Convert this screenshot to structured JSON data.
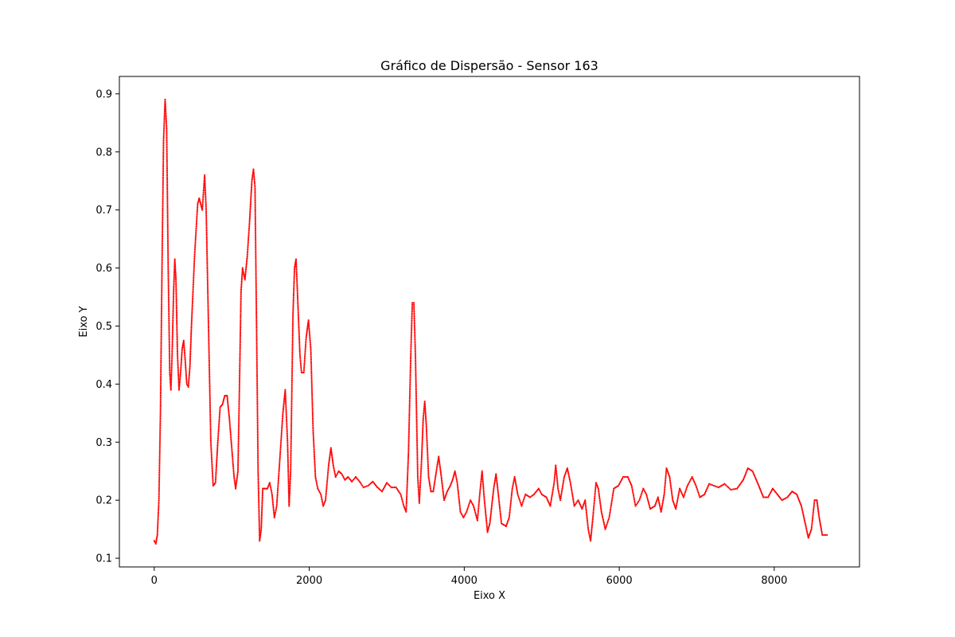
{
  "chart_data": {
    "type": "scatter",
    "title": "Gráfico de Dispersão - Sensor 163",
    "xlabel": "Eixo X",
    "ylabel": "Eixo Y",
    "xlim": [
      -450,
      9100
    ],
    "ylim": [
      0.085,
      0.93
    ],
    "x_ticks": [
      0,
      2000,
      4000,
      6000,
      8000
    ],
    "y_ticks": [
      0.1,
      0.2,
      0.3,
      0.4,
      0.5,
      0.6,
      0.7,
      0.8,
      0.9
    ],
    "marker_color": "#ff0000",
    "grid": false,
    "legend": "none",
    "series": [
      {
        "points": [
          [
            0,
            0.13
          ],
          [
            20,
            0.125
          ],
          [
            40,
            0.14
          ],
          [
            60,
            0.2
          ],
          [
            80,
            0.35
          ],
          [
            100,
            0.6
          ],
          [
            120,
            0.82
          ],
          [
            140,
            0.89
          ],
          [
            160,
            0.84
          ],
          [
            180,
            0.6
          ],
          [
            200,
            0.42
          ],
          [
            215,
            0.39
          ],
          [
            230,
            0.45
          ],
          [
            250,
            0.56
          ],
          [
            265,
            0.615
          ],
          [
            280,
            0.58
          ],
          [
            300,
            0.45
          ],
          [
            320,
            0.39
          ],
          [
            340,
            0.42
          ],
          [
            360,
            0.46
          ],
          [
            380,
            0.475
          ],
          [
            400,
            0.44
          ],
          [
            420,
            0.4
          ],
          [
            440,
            0.395
          ],
          [
            460,
            0.43
          ],
          [
            480,
            0.5
          ],
          [
            520,
            0.62
          ],
          [
            560,
            0.71
          ],
          [
            580,
            0.72
          ],
          [
            600,
            0.71
          ],
          [
            620,
            0.7
          ],
          [
            650,
            0.76
          ],
          [
            670,
            0.7
          ],
          [
            700,
            0.5
          ],
          [
            730,
            0.3
          ],
          [
            760,
            0.225
          ],
          [
            790,
            0.23
          ],
          [
            820,
            0.3
          ],
          [
            850,
            0.36
          ],
          [
            880,
            0.365
          ],
          [
            910,
            0.38
          ],
          [
            940,
            0.38
          ],
          [
            970,
            0.34
          ],
          [
            1000,
            0.29
          ],
          [
            1030,
            0.24
          ],
          [
            1050,
            0.22
          ],
          [
            1080,
            0.25
          ],
          [
            1100,
            0.4
          ],
          [
            1120,
            0.56
          ],
          [
            1140,
            0.6
          ],
          [
            1170,
            0.58
          ],
          [
            1200,
            0.62
          ],
          [
            1230,
            0.68
          ],
          [
            1260,
            0.75
          ],
          [
            1280,
            0.77
          ],
          [
            1300,
            0.74
          ],
          [
            1320,
            0.5
          ],
          [
            1340,
            0.25
          ],
          [
            1360,
            0.13
          ],
          [
            1380,
            0.15
          ],
          [
            1400,
            0.22
          ],
          [
            1430,
            0.22
          ],
          [
            1460,
            0.22
          ],
          [
            1490,
            0.23
          ],
          [
            1520,
            0.21
          ],
          [
            1550,
            0.17
          ],
          [
            1580,
            0.19
          ],
          [
            1620,
            0.27
          ],
          [
            1660,
            0.35
          ],
          [
            1690,
            0.39
          ],
          [
            1720,
            0.3
          ],
          [
            1740,
            0.19
          ],
          [
            1760,
            0.25
          ],
          [
            1790,
            0.52
          ],
          [
            1810,
            0.6
          ],
          [
            1830,
            0.615
          ],
          [
            1850,
            0.55
          ],
          [
            1880,
            0.45
          ],
          [
            1900,
            0.42
          ],
          [
            1930,
            0.42
          ],
          [
            1960,
            0.48
          ],
          [
            1990,
            0.51
          ],
          [
            2020,
            0.46
          ],
          [
            2050,
            0.32
          ],
          [
            2080,
            0.24
          ],
          [
            2110,
            0.22
          ],
          [
            2150,
            0.21
          ],
          [
            2180,
            0.19
          ],
          [
            2210,
            0.2
          ],
          [
            2250,
            0.26
          ],
          [
            2280,
            0.29
          ],
          [
            2310,
            0.26
          ],
          [
            2340,
            0.24
          ],
          [
            2380,
            0.25
          ],
          [
            2420,
            0.245
          ],
          [
            2460,
            0.235
          ],
          [
            2500,
            0.24
          ],
          [
            2550,
            0.232
          ],
          [
            2600,
            0.24
          ],
          [
            2650,
            0.232
          ],
          [
            2700,
            0.222
          ],
          [
            2760,
            0.225
          ],
          [
            2820,
            0.232
          ],
          [
            2880,
            0.222
          ],
          [
            2940,
            0.215
          ],
          [
            3000,
            0.23
          ],
          [
            3060,
            0.222
          ],
          [
            3120,
            0.222
          ],
          [
            3180,
            0.21
          ],
          [
            3220,
            0.19
          ],
          [
            3250,
            0.18
          ],
          [
            3280,
            0.28
          ],
          [
            3310,
            0.45
          ],
          [
            3330,
            0.54
          ],
          [
            3350,
            0.54
          ],
          [
            3370,
            0.45
          ],
          [
            3400,
            0.24
          ],
          [
            3420,
            0.195
          ],
          [
            3450,
            0.27
          ],
          [
            3470,
            0.34
          ],
          [
            3490,
            0.37
          ],
          [
            3510,
            0.33
          ],
          [
            3540,
            0.24
          ],
          [
            3570,
            0.215
          ],
          [
            3600,
            0.215
          ],
          [
            3640,
            0.25
          ],
          [
            3670,
            0.275
          ],
          [
            3700,
            0.245
          ],
          [
            3740,
            0.2
          ],
          [
            3780,
            0.215
          ],
          [
            3820,
            0.225
          ],
          [
            3850,
            0.235
          ],
          [
            3880,
            0.25
          ],
          [
            3910,
            0.23
          ],
          [
            3950,
            0.18
          ],
          [
            3990,
            0.17
          ],
          [
            4030,
            0.18
          ],
          [
            4080,
            0.2
          ],
          [
            4120,
            0.19
          ],
          [
            4170,
            0.165
          ],
          [
            4200,
            0.21
          ],
          [
            4230,
            0.25
          ],
          [
            4260,
            0.2
          ],
          [
            4300,
            0.145
          ],
          [
            4330,
            0.16
          ],
          [
            4380,
            0.22
          ],
          [
            4410,
            0.245
          ],
          [
            4440,
            0.21
          ],
          [
            4480,
            0.16
          ],
          [
            4540,
            0.155
          ],
          [
            4580,
            0.17
          ],
          [
            4620,
            0.22
          ],
          [
            4650,
            0.24
          ],
          [
            4690,
            0.21
          ],
          [
            4740,
            0.19
          ],
          [
            4790,
            0.21
          ],
          [
            4850,
            0.205
          ],
          [
            4900,
            0.21
          ],
          [
            4960,
            0.22
          ],
          [
            5000,
            0.21
          ],
          [
            5060,
            0.205
          ],
          [
            5110,
            0.19
          ],
          [
            5160,
            0.23
          ],
          [
            5180,
            0.26
          ],
          [
            5210,
            0.22
          ],
          [
            5240,
            0.2
          ],
          [
            5290,
            0.24
          ],
          [
            5330,
            0.255
          ],
          [
            5370,
            0.23
          ],
          [
            5420,
            0.19
          ],
          [
            5470,
            0.2
          ],
          [
            5520,
            0.185
          ],
          [
            5560,
            0.2
          ],
          [
            5600,
            0.15
          ],
          [
            5630,
            0.13
          ],
          [
            5660,
            0.17
          ],
          [
            5700,
            0.23
          ],
          [
            5730,
            0.22
          ],
          [
            5770,
            0.18
          ],
          [
            5820,
            0.15
          ],
          [
            5870,
            0.17
          ],
          [
            5930,
            0.22
          ],
          [
            5990,
            0.225
          ],
          [
            6050,
            0.24
          ],
          [
            6110,
            0.24
          ],
          [
            6160,
            0.225
          ],
          [
            6210,
            0.19
          ],
          [
            6260,
            0.2
          ],
          [
            6310,
            0.22
          ],
          [
            6350,
            0.21
          ],
          [
            6400,
            0.185
          ],
          [
            6460,
            0.19
          ],
          [
            6500,
            0.205
          ],
          [
            6540,
            0.18
          ],
          [
            6580,
            0.21
          ],
          [
            6610,
            0.255
          ],
          [
            6650,
            0.24
          ],
          [
            6690,
            0.2
          ],
          [
            6730,
            0.185
          ],
          [
            6780,
            0.22
          ],
          [
            6830,
            0.205
          ],
          [
            6880,
            0.225
          ],
          [
            6940,
            0.24
          ],
          [
            6990,
            0.225
          ],
          [
            7040,
            0.205
          ],
          [
            7100,
            0.21
          ],
          [
            7160,
            0.228
          ],
          [
            7220,
            0.225
          ],
          [
            7280,
            0.222
          ],
          [
            7360,
            0.228
          ],
          [
            7440,
            0.218
          ],
          [
            7520,
            0.22
          ],
          [
            7600,
            0.235
          ],
          [
            7660,
            0.255
          ],
          [
            7720,
            0.25
          ],
          [
            7800,
            0.225
          ],
          [
            7860,
            0.205
          ],
          [
            7920,
            0.205
          ],
          [
            7980,
            0.22
          ],
          [
            8040,
            0.21
          ],
          [
            8100,
            0.2
          ],
          [
            8170,
            0.205
          ],
          [
            8230,
            0.215
          ],
          [
            8290,
            0.21
          ],
          [
            8350,
            0.19
          ],
          [
            8400,
            0.16
          ],
          [
            8440,
            0.135
          ],
          [
            8480,
            0.15
          ],
          [
            8520,
            0.2
          ],
          [
            8550,
            0.2
          ],
          [
            8580,
            0.17
          ],
          [
            8620,
            0.14
          ],
          [
            8680,
            0.14
          ]
        ]
      }
    ]
  }
}
